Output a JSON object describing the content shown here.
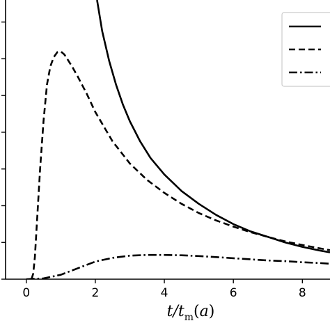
{
  "chart_data": {
    "type": "line",
    "title": "",
    "xlabel": "t/t_m(a)",
    "ylabel": "",
    "xlim": [
      -0.6,
      8.8
    ],
    "ylim": [
      0,
      7.6
    ],
    "xticks": [
      0,
      2,
      4,
      6,
      8
    ],
    "xtick_labels": [
      "0",
      "2",
      "4",
      "6",
      "8"
    ],
    "yticks": [
      0,
      1,
      2,
      3,
      4,
      5,
      6,
      7
    ],
    "grid": false,
    "legend": {
      "placement": "top-right",
      "entries": 3
    },
    "series": [
      {
        "style": "solid",
        "x": [
          2.05,
          2.2,
          2.4,
          2.6,
          2.8,
          3.0,
          3.3,
          3.6,
          4.0,
          4.5,
          5.0,
          5.5,
          6.0,
          6.5,
          7.0,
          7.5,
          8.0,
          8.5,
          8.8
        ],
        "y": [
          7.6,
          6.75,
          5.95,
          5.3,
          4.75,
          4.3,
          3.75,
          3.3,
          2.85,
          2.4,
          2.05,
          1.75,
          1.5,
          1.3,
          1.15,
          1.0,
          0.88,
          0.78,
          0.73
        ]
      },
      {
        "style": "dashed",
        "x": [
          0.15,
          0.2,
          0.25,
          0.3,
          0.4,
          0.5,
          0.6,
          0.7,
          0.8,
          0.9,
          1.0,
          1.1,
          1.2,
          1.35,
          1.5,
          1.75,
          2.0,
          2.5,
          3.0,
          3.5,
          4.0,
          4.5,
          5.0,
          5.5,
          6.0,
          6.5,
          7.0,
          7.5,
          8.0,
          8.5,
          8.8
        ],
        "y": [
          0.0,
          0.15,
          0.6,
          1.4,
          3.0,
          4.3,
          5.3,
          5.8,
          6.05,
          6.18,
          6.2,
          6.12,
          5.98,
          5.75,
          5.5,
          5.05,
          4.55,
          3.75,
          3.15,
          2.7,
          2.35,
          2.05,
          1.8,
          1.6,
          1.43,
          1.28,
          1.15,
          1.03,
          0.93,
          0.84,
          0.79
        ]
      },
      {
        "style": "dashdot",
        "x": [
          0.0,
          0.5,
          1.0,
          1.5,
          2.0,
          2.5,
          3.0,
          3.5,
          4.0,
          4.5,
          5.0,
          5.5,
          6.0,
          6.5,
          7.0,
          7.5,
          8.0,
          8.5,
          8.8
        ],
        "y": [
          0.0,
          0.02,
          0.12,
          0.3,
          0.48,
          0.58,
          0.64,
          0.66,
          0.66,
          0.65,
          0.63,
          0.6,
          0.57,
          0.54,
          0.51,
          0.49,
          0.46,
          0.44,
          0.42
        ]
      }
    ]
  }
}
